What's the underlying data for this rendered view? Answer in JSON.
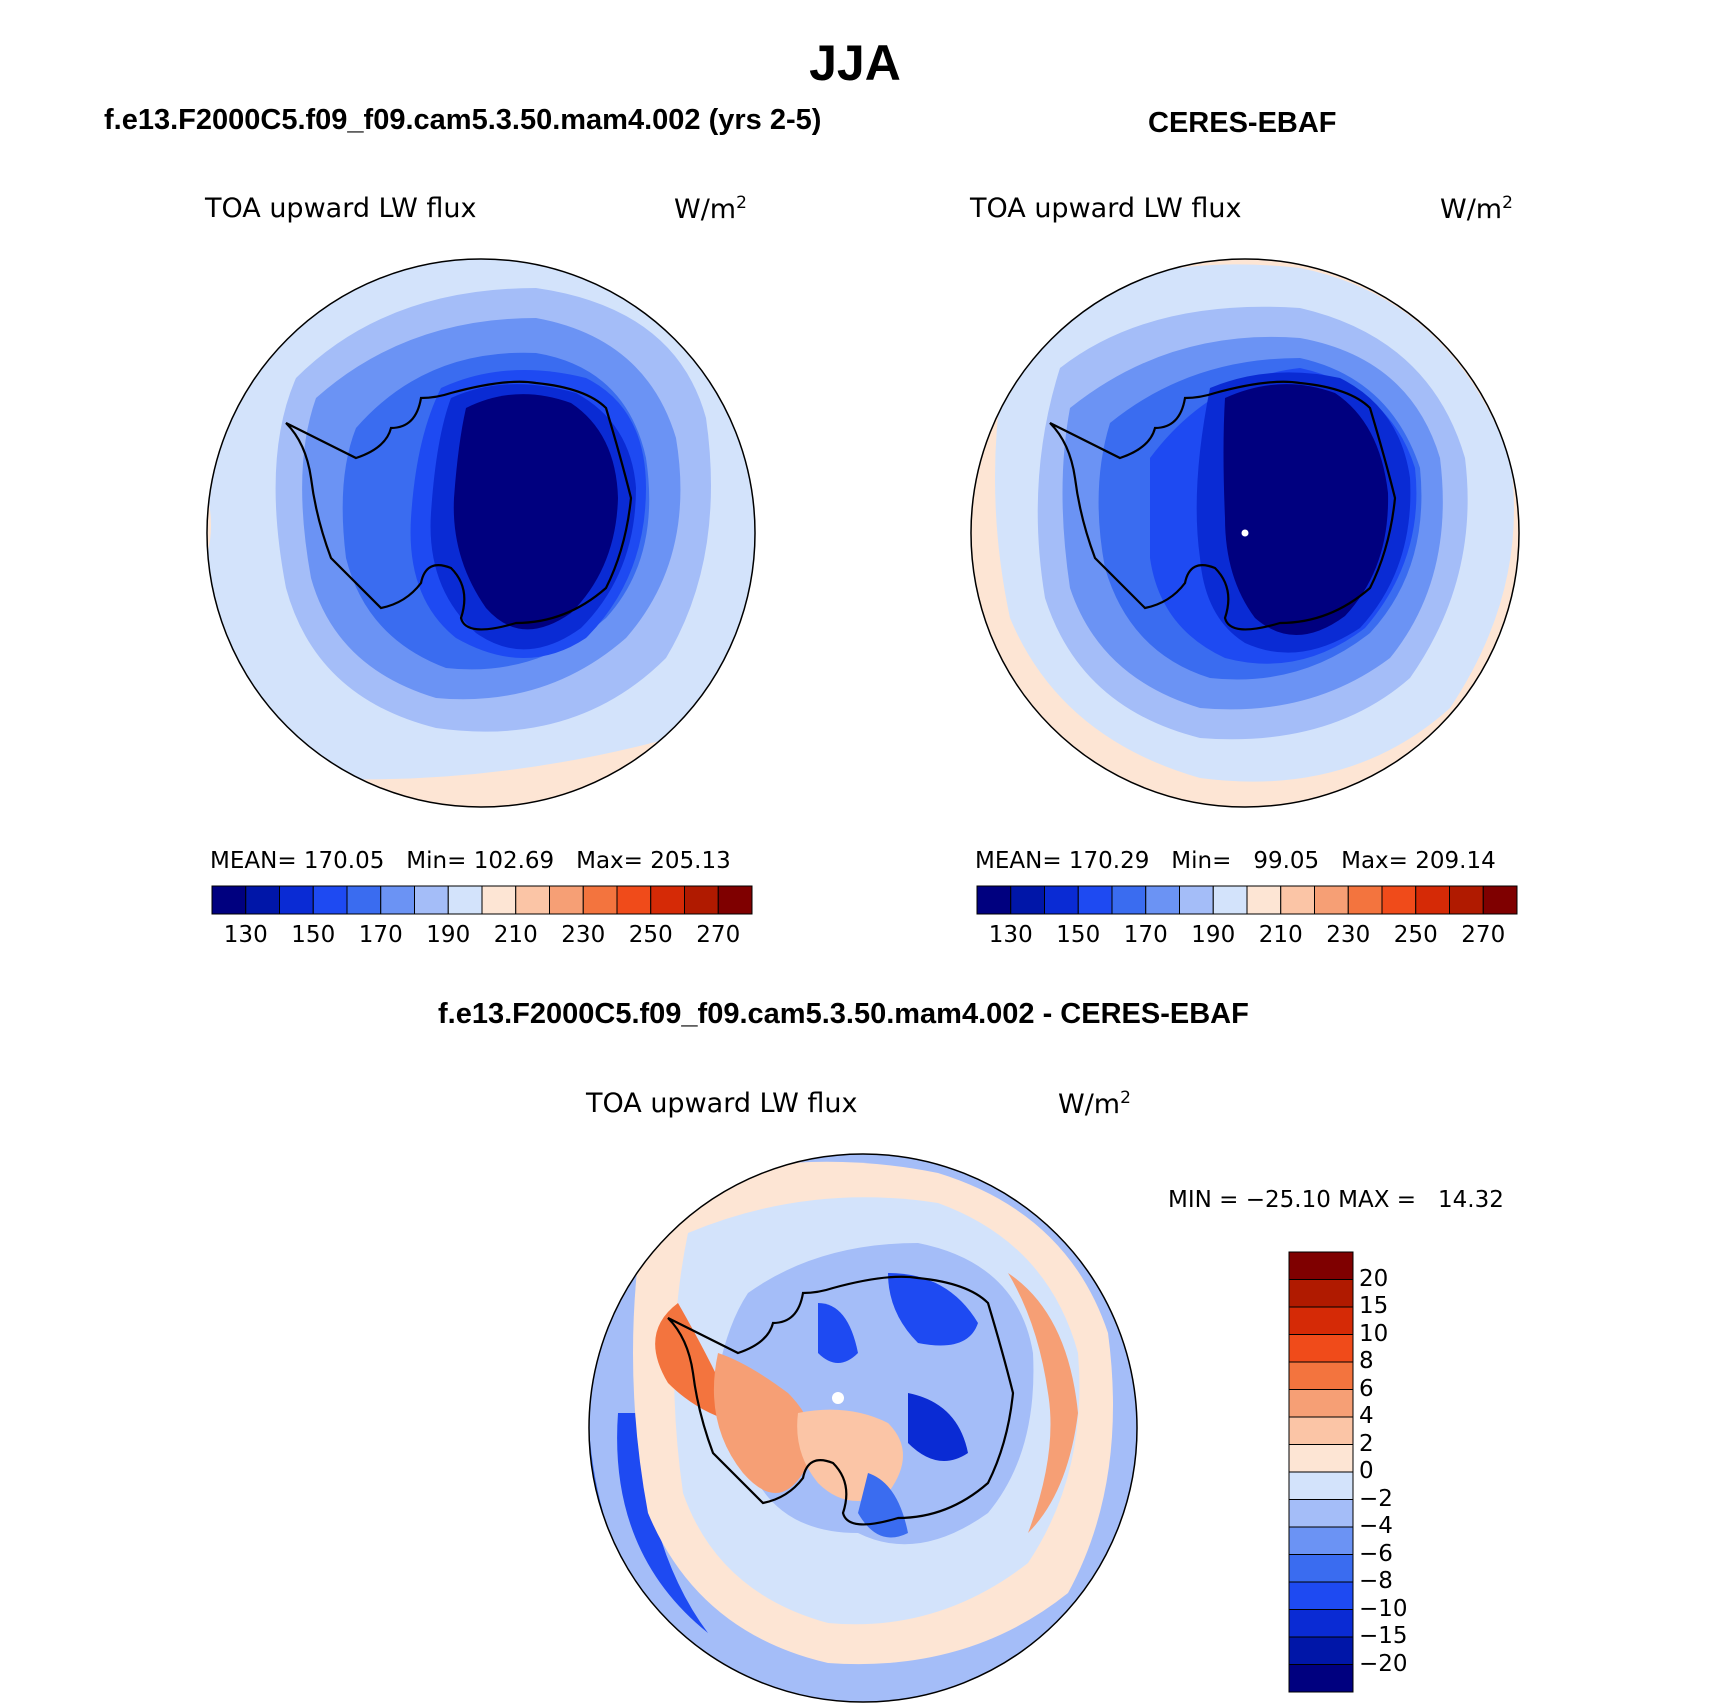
{
  "header": {
    "title": "JJA"
  },
  "panels": {
    "model": {
      "title": "f.e13.F2000C5.f09_f09.cam5.3.50.mam4.002 (yrs 2-5)",
      "variable": "TOA upward LW flux",
      "unit": "W/m",
      "unit_exp": "2",
      "stats": "MEAN= 170.05   Min= 102.69   Max= 205.13"
    },
    "obs": {
      "title": "CERES-EBAF",
      "variable": "TOA upward LW flux",
      "unit": "W/m",
      "unit_exp": "2",
      "stats": "MEAN= 170.29   Min=   99.05   Max= 209.14"
    },
    "diff": {
      "title": "f.e13.F2000C5.f09_f09.cam5.3.50.mam4.002 - CERES-EBAF",
      "variable": "TOA upward LW flux",
      "unit": "W/m",
      "unit_exp": "2",
      "stats": "MIN = −25.10 MAX =   14.32"
    }
  },
  "colorbar_abs": {
    "colors": [
      "#00007f",
      "#0016a8",
      "#0a2bd4",
      "#1e4af2",
      "#3a6cf0",
      "#6b93f4",
      "#a4bdf8",
      "#d3e3fb",
      "#fde5d4",
      "#fbc5a6",
      "#f69f75",
      "#f3743e",
      "#f04b1a",
      "#d52a06",
      "#b01a00",
      "#7f0000"
    ],
    "labels": [
      "130",
      "150",
      "170",
      "190",
      "210",
      "230",
      "250",
      "270"
    ]
  },
  "colorbar_diff": {
    "colors": [
      "#7f0000",
      "#b01a00",
      "#d52a06",
      "#f04b1a",
      "#f3743e",
      "#f69f75",
      "#fbc5a6",
      "#fde5d4",
      "#d3e3fb",
      "#a4bdf8",
      "#6b93f4",
      "#3a6cf0",
      "#1e4af2",
      "#0a2bd4",
      "#0016a8",
      "#00007f"
    ],
    "labels": [
      "20",
      "15",
      "10",
      "8",
      "6",
      "4",
      "2",
      "0",
      "−2",
      "−4",
      "−6",
      "−8",
      "−10",
      "−15",
      "−20"
    ]
  },
  "map_colors": {
    "ring210": "#fde5d4",
    "ring190": "#d3e3fb",
    "ring180": "#a4bdf8",
    "ring170": "#6b93f4",
    "ring160": "#3a6cf0",
    "ring150": "#1e4af2",
    "ring140": "#0a2bd4",
    "ring130": "#00007f",
    "pos2": "#fde5d4",
    "pos4": "#fbc5a6",
    "pos6": "#f69f75",
    "pos8": "#f3743e",
    "pos10": "#f04b1a",
    "neg2": "#d3e3fb",
    "neg4": "#a4bdf8",
    "neg6": "#6b93f4",
    "neg8": "#3a6cf0",
    "neg10": "#1e4af2",
    "neg15": "#0a2bd4"
  }
}
